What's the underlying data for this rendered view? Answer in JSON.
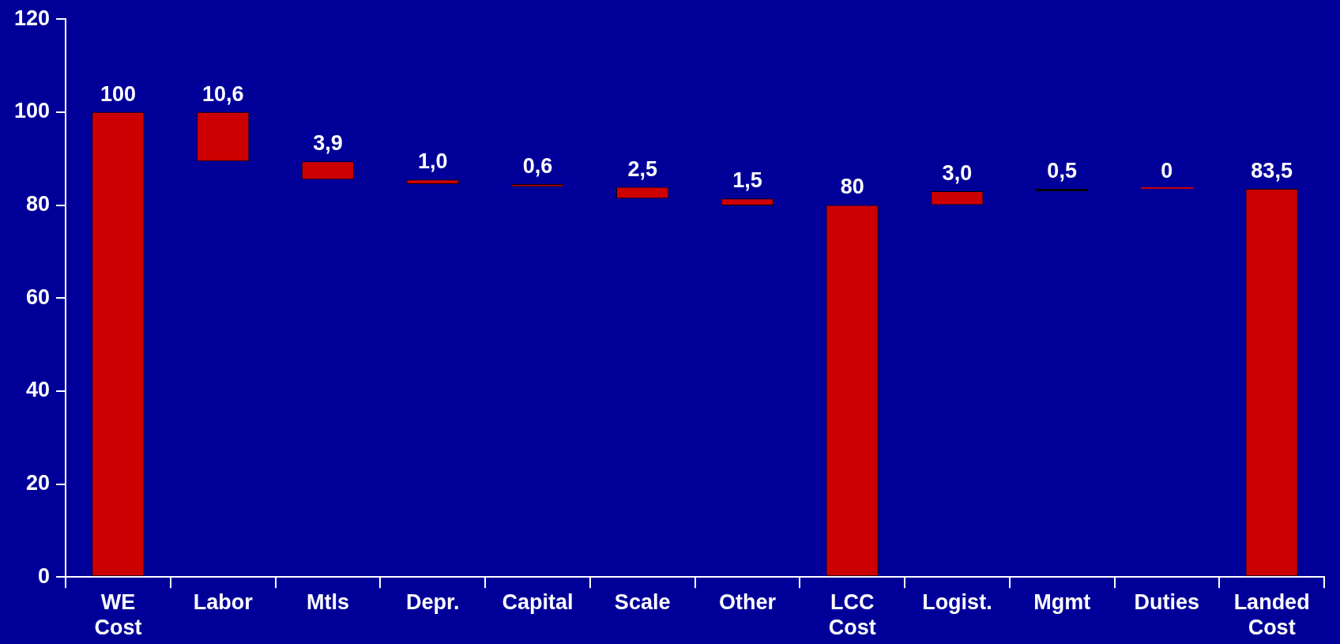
{
  "chart_data": {
    "type": "bar",
    "categories": [
      "WE Cost",
      "Labor",
      "Mtls",
      "Depr.",
      "Capital",
      "Scale",
      "Other",
      "LCC Cost",
      "Logist.",
      "Mgmt",
      "Duties",
      "Landed Cost"
    ],
    "values": [
      100,
      10.6,
      3.9,
      1.0,
      0.6,
      2.5,
      1.5,
      80,
      3.0,
      0.5,
      0,
      83.5
    ],
    "base": [
      0,
      89.4,
      85.5,
      84.5,
      83.9,
      81.4,
      79.9,
      0,
      80,
      83,
      83.5,
      0
    ],
    "colors": [
      "#cc0000",
      "#cc0000",
      "#cc0000",
      "#cc0000",
      "#cc0000",
      "#cc0000",
      "#cc0000",
      "#cc0000",
      "#cc0000",
      "#000000",
      "#cc0000",
      "#cc0000"
    ],
    "value_labels": [
      "100",
      "10,6",
      "3,9",
      "1,0",
      "0,6",
      "2,5",
      "1,5",
      "80",
      "3,0",
      "0,5",
      "0",
      "83,5"
    ],
    "ylim": [
      0,
      120
    ],
    "yticks": [
      0,
      20,
      40,
      60,
      80,
      100,
      120
    ],
    "grid": false,
    "legend": false
  }
}
